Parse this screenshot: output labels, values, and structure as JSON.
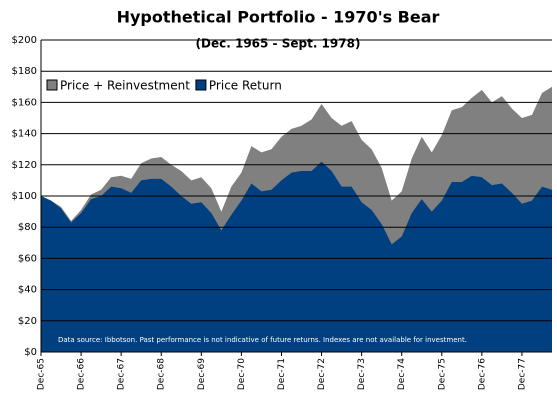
{
  "chart_data": {
    "type": "area",
    "title": "Hypothetical Portfolio - 1970's Bear",
    "subtitle": "(Dec. 1965 - Sept. 1978)",
    "note": "Data source: Ibbotson.  Past performance is not indicative of future returns.  Indexes are not available for investment.",
    "categories": [
      "Dec-65",
      null,
      null,
      null,
      "Dec-66",
      null,
      null,
      null,
      "Dec-67",
      null,
      null,
      null,
      "Dec-68",
      null,
      null,
      null,
      "Dec-69",
      null,
      null,
      null,
      "Dec-70",
      null,
      null,
      null,
      "Dec-71",
      null,
      null,
      null,
      "Dec-72",
      null,
      null,
      null,
      "Dec-73",
      null,
      null,
      null,
      "Dec-74",
      null,
      null,
      null,
      "Dec-75",
      null,
      null,
      null,
      "Dec-76",
      null,
      null,
      null,
      "Dec-77",
      null,
      null,
      null
    ],
    "series": [
      {
        "name": "Price + Reinvestment",
        "color": "#808080",
        "values": [
          100,
          97,
          93,
          84,
          91,
          101,
          104,
          112,
          113,
          111,
          121,
          124,
          125,
          120,
          116,
          110,
          112,
          105,
          90,
          106,
          115,
          132,
          128,
          130,
          138,
          143,
          145,
          149,
          159,
          150,
          145,
          148,
          136,
          130,
          118,
          97,
          103,
          124,
          138,
          128,
          139,
          155,
          157,
          163,
          168,
          160,
          164,
          156,
          150,
          152,
          166,
          170
        ]
      },
      {
        "name": "Price Return",
        "color": "#004080",
        "values": [
          100,
          97,
          92,
          83,
          89,
          98,
          100,
          106,
          105,
          102,
          110,
          111,
          111,
          106,
          100,
          95,
          96,
          89,
          78,
          88,
          97,
          108,
          103,
          104,
          110,
          115,
          116,
          116,
          122,
          116,
          106,
          106,
          96,
          91,
          82,
          69,
          74,
          89,
          98,
          90,
          97,
          109,
          109,
          113,
          112,
          107,
          108,
          102,
          95,
          97,
          106,
          104
        ]
      }
    ],
    "ylim": [
      0,
      200
    ],
    "yticks": [
      {
        "value": 0,
        "label": "$0"
      },
      {
        "value": 20,
        "label": "$20"
      },
      {
        "value": 40,
        "label": "$40"
      },
      {
        "value": 60,
        "label": "$60"
      },
      {
        "value": 80,
        "label": "$80"
      },
      {
        "value": 100,
        "label": "$100"
      },
      {
        "value": 120,
        "label": "$120"
      },
      {
        "value": 140,
        "label": "$140"
      },
      {
        "value": 160,
        "label": "$160"
      },
      {
        "value": 180,
        "label": "$180"
      },
      {
        "value": 200,
        "label": "$200"
      }
    ],
    "grid": true,
    "legend": "top-left"
  }
}
